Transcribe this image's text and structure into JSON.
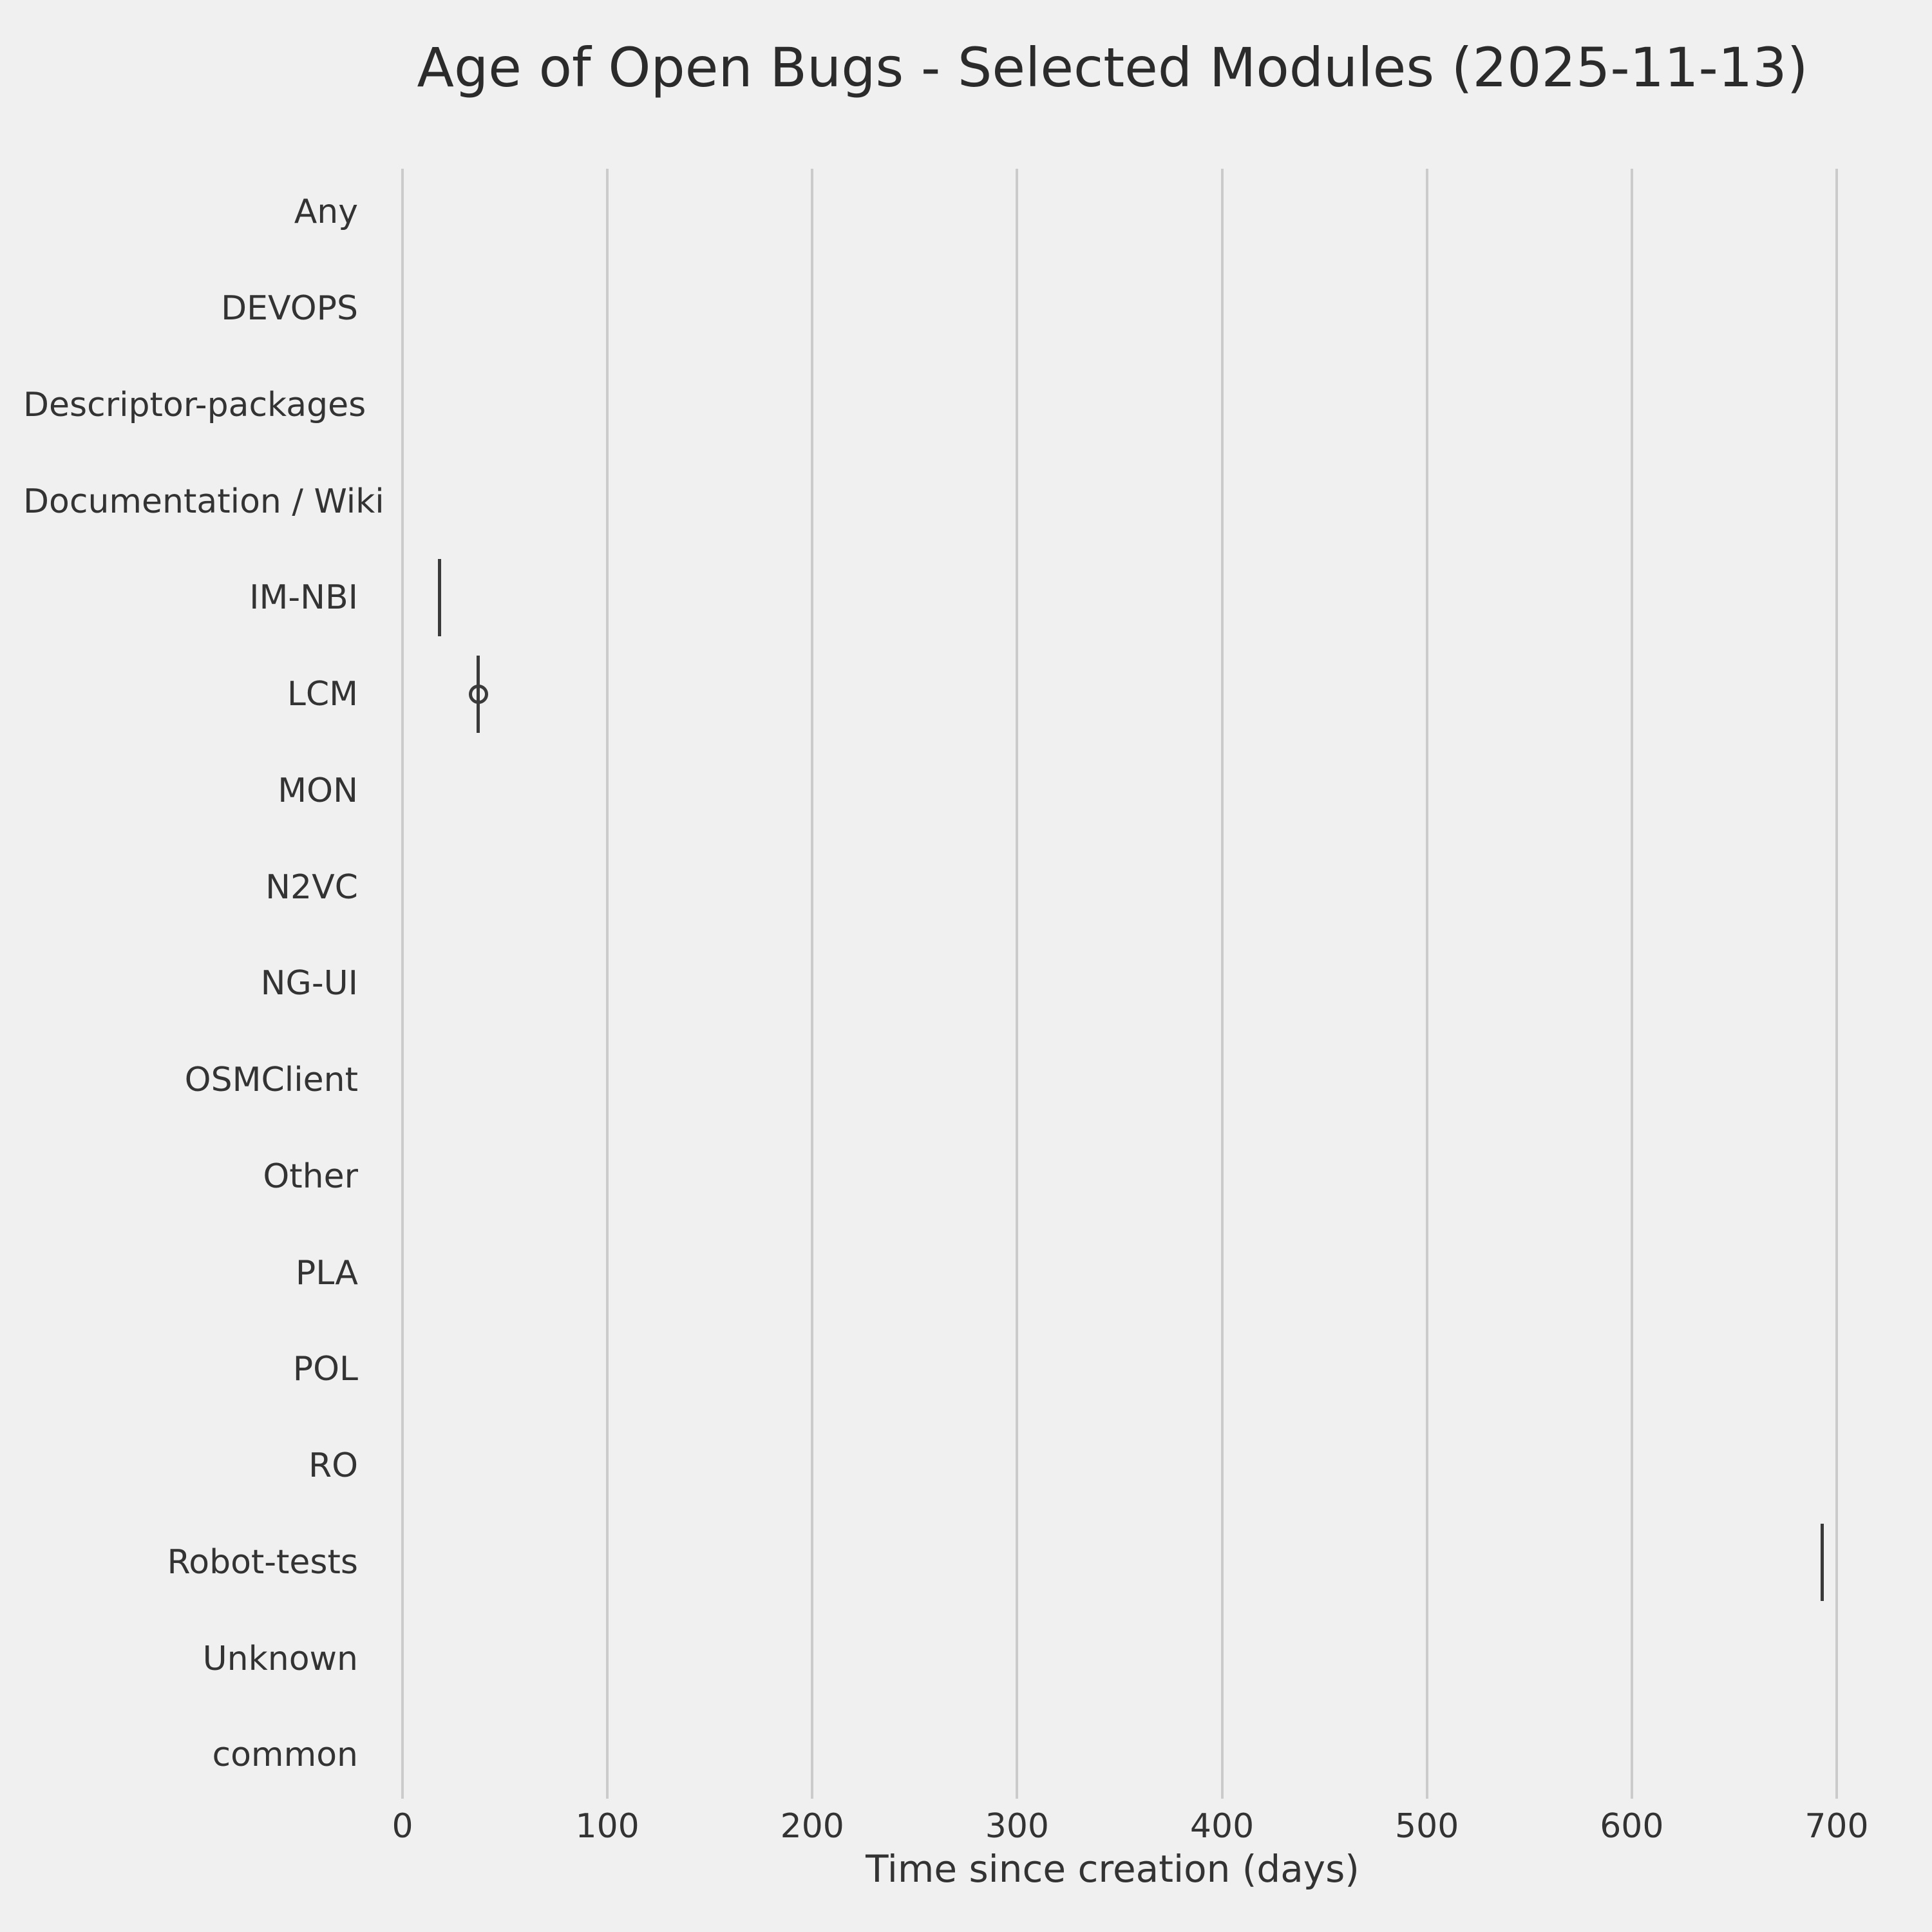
{
  "chart": {
    "title": "Age of Open Bugs - Selected Modules (2025-11-13)",
    "xlabel": "Time since creation (days)"
  },
  "colors": {
    "background": "#f0f0f0",
    "gridline": "#cbcbcb",
    "text": "#333333",
    "box_line": "#3a3a3a"
  },
  "chart_data": {
    "type": "boxplot",
    "orientation": "horizontal",
    "title": "Age of Open Bugs - Selected Modules (2025-11-13)",
    "xlabel": "Time since creation (days)",
    "ylabel": "",
    "grid": true,
    "legend": false,
    "xlim": [
      -35,
      730
    ],
    "x_ticks": [
      0,
      100,
      200,
      300,
      400,
      500,
      600,
      700
    ],
    "categories": [
      "Any",
      "DEVOPS",
      "Descriptor-packages",
      "Documentation / Wiki",
      "IM-NBI",
      "LCM",
      "MON",
      "N2VC",
      "NG-UI",
      "OSMClient",
      "Other",
      "PLA",
      "POL",
      "RO",
      "Robot-tests",
      "Unknown",
      "common"
    ],
    "boxes": [
      {
        "category": "IM-NBI",
        "whisker_low_days": 18,
        "q1_days": 18,
        "median_days": 18,
        "q3_days": 18,
        "whisker_high_days": 18,
        "open_circle_marker": false
      },
      {
        "category": "LCM",
        "whisker_low_days": 37,
        "q1_days": 37,
        "median_days": 37,
        "q3_days": 37,
        "whisker_high_days": 37,
        "open_circle_marker": true
      },
      {
        "category": "Robot-tests",
        "whisker_low_days": 693,
        "q1_days": 693,
        "median_days": 693,
        "q3_days": 693,
        "whisker_high_days": 693,
        "open_circle_marker": false
      }
    ],
    "empty_categories": [
      "Any",
      "DEVOPS",
      "Descriptor-packages",
      "Documentation / Wiki",
      "MON",
      "N2VC",
      "NG-UI",
      "OSMClient",
      "Other",
      "PLA",
      "POL",
      "RO",
      "Unknown",
      "common"
    ]
  }
}
